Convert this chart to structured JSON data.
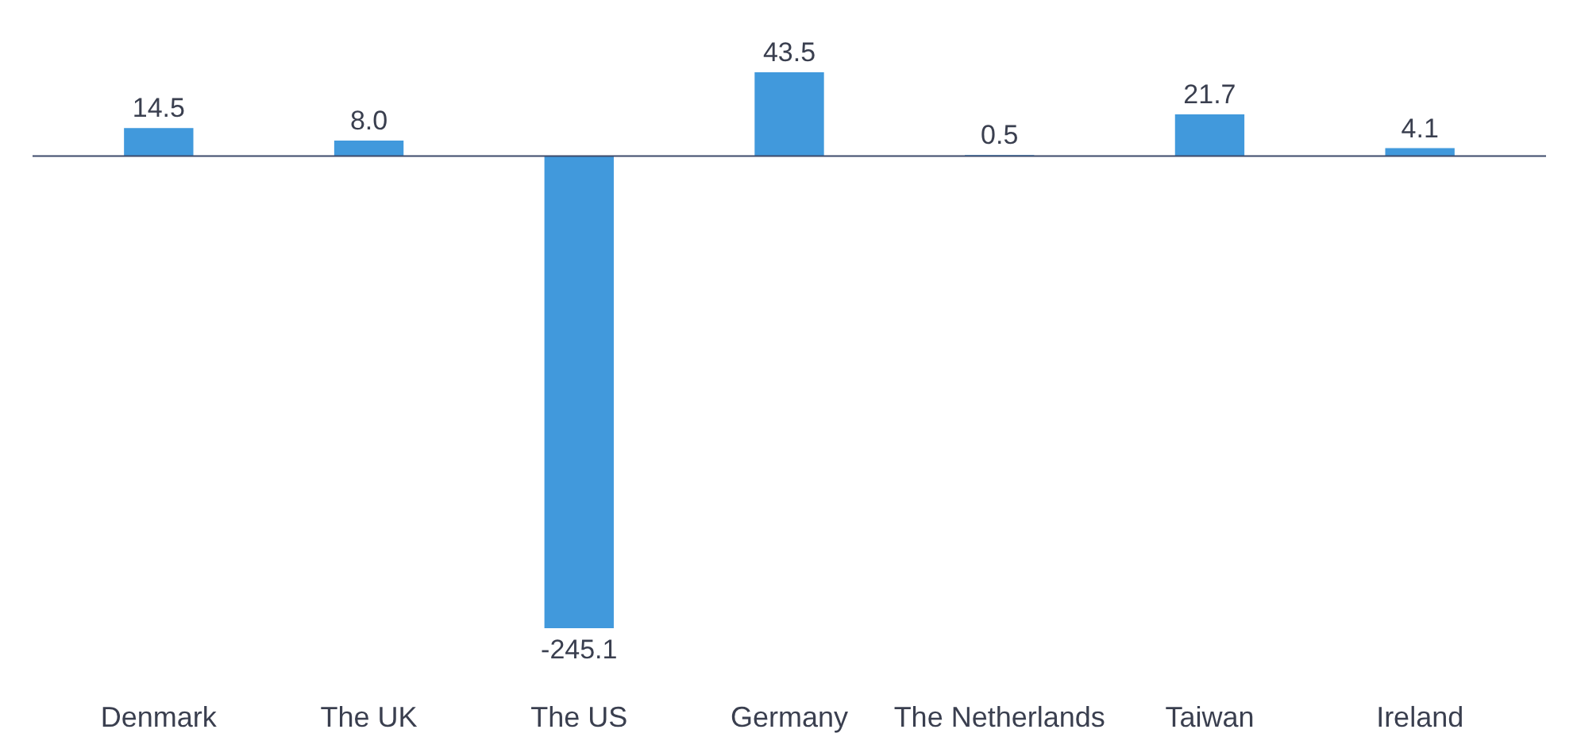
{
  "chart_data": {
    "type": "bar",
    "categories": [
      "Denmark",
      "The UK",
      "The US",
      "Germany",
      "The Netherlands",
      "Taiwan",
      "Ireland"
    ],
    "values": [
      14.5,
      8.0,
      -245.1,
      43.5,
      0.5,
      21.7,
      4.1
    ],
    "value_labels": [
      "14.5",
      "8.0",
      "-245.1",
      "43.5",
      "0.5",
      "21.7",
      "4.1"
    ],
    "color": "#4199dc",
    "grid": false,
    "ref_lines": [
      {
        "axis": "y",
        "value": 0,
        "color": "#3d4a6b"
      }
    ]
  }
}
